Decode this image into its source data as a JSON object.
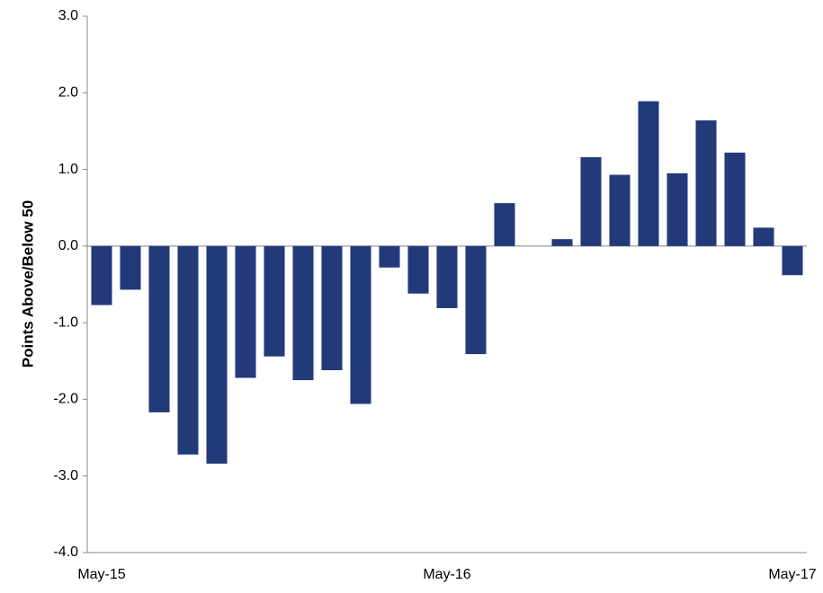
{
  "chart_data": {
    "type": "bar",
    "y_label": "Points Above/Below 50",
    "categories": [
      "May-15",
      null,
      null,
      null,
      null,
      null,
      null,
      null,
      null,
      null,
      null,
      null,
      "May-16",
      null,
      null,
      null,
      null,
      null,
      null,
      null,
      null,
      null,
      null,
      null,
      "May-17"
    ],
    "values": [
      -0.77,
      -0.57,
      -2.17,
      -2.72,
      -2.84,
      -1.72,
      -1.44,
      -1.75,
      -1.62,
      -2.06,
      -0.28,
      -0.62,
      -0.81,
      -1.41,
      0.56,
      0.0,
      0.09,
      1.16,
      0.93,
      1.89,
      0.95,
      1.64,
      1.22,
      0.24,
      -0.38
    ],
    "color": "#233a7a",
    "ylim": [
      -4,
      3
    ],
    "yticks": [
      {
        "value": -4,
        "label": "-4.0"
      },
      {
        "value": -3,
        "label": "-3.0"
      },
      {
        "value": -2,
        "label": "-2.0"
      },
      {
        "value": -1,
        "label": "-1.0"
      },
      {
        "value": 0,
        "label": "0.0"
      },
      {
        "value": 1,
        "label": "1.0"
      },
      {
        "value": 2,
        "label": "2.0"
      },
      {
        "value": 3,
        "label": "3.0"
      }
    ],
    "grid": false
  }
}
